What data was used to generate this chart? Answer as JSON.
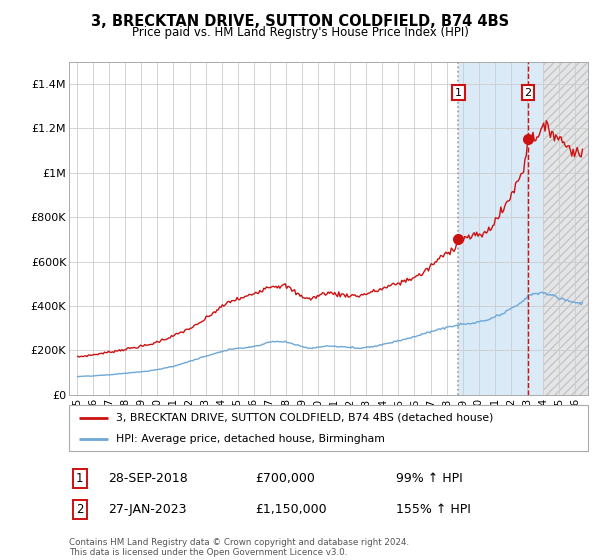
{
  "title": "3, BRECKTAN DRIVE, SUTTON COLDFIELD, B74 4BS",
  "subtitle": "Price paid vs. HM Land Registry's House Price Index (HPI)",
  "title_fontsize": 10.5,
  "subtitle_fontsize": 8.5,
  "xlim": [
    1994.5,
    2026.8
  ],
  "ylim": [
    0,
    1500000
  ],
  "yticks": [
    0,
    200000,
    400000,
    600000,
    800000,
    1000000,
    1200000,
    1400000
  ],
  "ytick_labels": [
    "£0",
    "£200K",
    "£400K",
    "£600K",
    "£800K",
    "£1M",
    "£1.2M",
    "£1.4M"
  ],
  "xtick_years": [
    1995,
    1996,
    1997,
    1998,
    1999,
    2000,
    2001,
    2002,
    2003,
    2004,
    2005,
    2006,
    2007,
    2008,
    2009,
    2010,
    2011,
    2012,
    2013,
    2014,
    2015,
    2016,
    2017,
    2018,
    2019,
    2020,
    2021,
    2022,
    2023,
    2024,
    2025,
    2026
  ],
  "grid_color": "#cccccc",
  "bg_color": "#ffffff",
  "hpi_line_color": "#6ea8d8",
  "price_line_color": "#cc1111",
  "marker1_date": 2018.74,
  "marker1_price": 700000,
  "marker2_date": 2023.07,
  "marker2_price": 1150000,
  "annotation1_label": "1",
  "annotation2_label": "2",
  "highlight_start": 2018.74,
  "highlight_end": 2026.8,
  "highlight_color": "#daeaf7",
  "hatch_start": 2024.0,
  "legend_line1": "3, BRECKTAN DRIVE, SUTTON COLDFIELD, B74 4BS (detached house)",
  "legend_line2": "HPI: Average price, detached house, Birmingham",
  "table_row1_num": "1",
  "table_row1_date": "28-SEP-2018",
  "table_row1_price": "£700,000",
  "table_row1_hpi": "99% ↑ HPI",
  "table_row2_num": "2",
  "table_row2_date": "27-JAN-2023",
  "table_row2_price": "£1,150,000",
  "table_row2_hpi": "155% ↑ HPI",
  "footer": "Contains HM Land Registry data © Crown copyright and database right 2024.\nThis data is licensed under the Open Government Licence v3.0."
}
